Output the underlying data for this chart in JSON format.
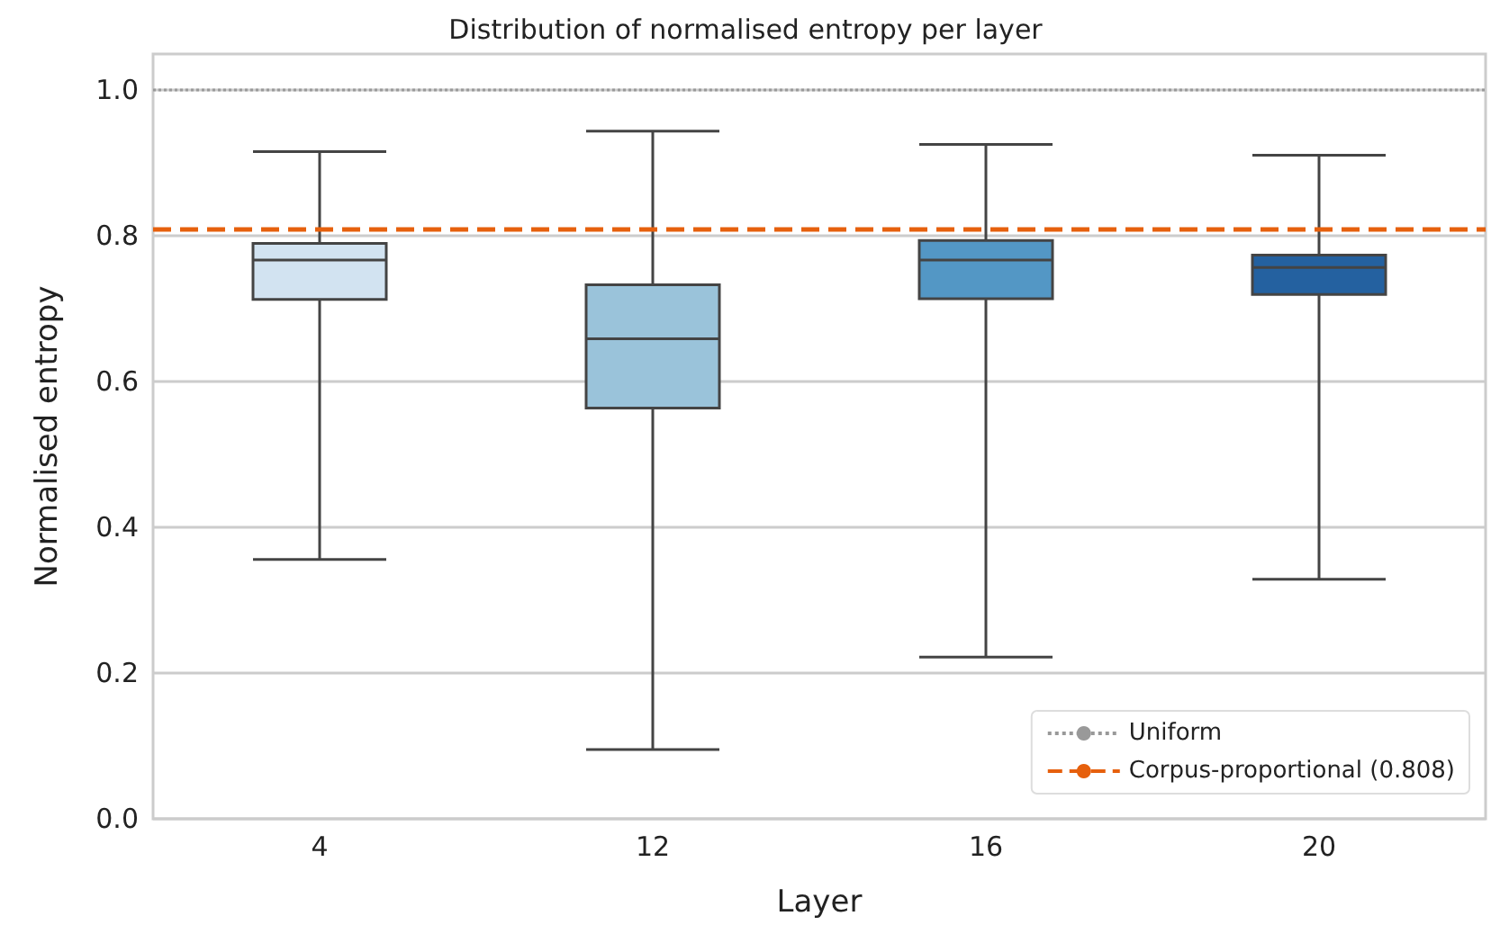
{
  "chart_data": {
    "type": "box",
    "title": "Distribution of normalised entropy per layer",
    "xlabel": "Layer",
    "ylabel": "Normalised entropy",
    "categories": [
      "4",
      "12",
      "16",
      "20"
    ],
    "colors": [
      "#d2e3f1",
      "#9ac3da",
      "#5397c5",
      "#2461a0"
    ],
    "boxes": [
      {
        "low": 0.356,
        "q1": 0.713,
        "median": 0.767,
        "q3": 0.79,
        "high": 0.916
      },
      {
        "low": 0.095,
        "q1": 0.564,
        "median": 0.659,
        "q3": 0.733,
        "high": 0.944
      },
      {
        "low": 0.222,
        "q1": 0.714,
        "median": 0.767,
        "q3": 0.794,
        "high": 0.926
      },
      {
        "low": 0.329,
        "q1": 0.72,
        "median": 0.757,
        "q3": 0.774,
        "high": 0.911
      }
    ],
    "ylim": [
      0,
      1.05
    ],
    "yticks": [
      {
        "value": 0,
        "label": "0.0"
      },
      {
        "value": 0.2,
        "label": "0.2"
      },
      {
        "value": 0.4,
        "label": "0.4"
      },
      {
        "value": 0.6,
        "label": "0.6"
      },
      {
        "value": 0.8,
        "label": "0.8"
      },
      {
        "value": 1,
        "label": "1.0"
      }
    ],
    "grid": "y",
    "legend": "bottom right",
    "ref_lines": [
      {
        "axis": "y",
        "value": 1,
        "label": "Uniform",
        "color": "#999999",
        "line_style": "dotted"
      },
      {
        "axis": "y",
        "value": 0.808,
        "label": "Corpus-proportional (0.808)",
        "color": "#e6600d",
        "line_style": "dashed"
      }
    ]
  }
}
